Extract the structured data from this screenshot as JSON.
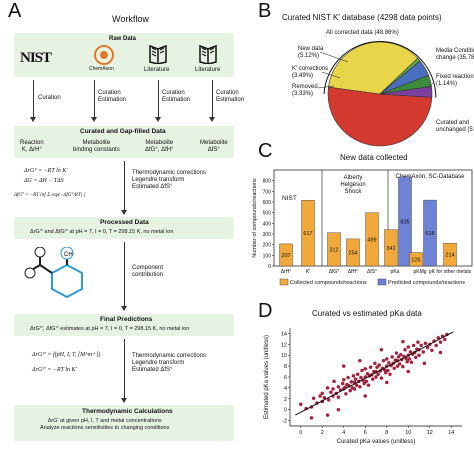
{
  "panelA": {
    "letter": "A",
    "title": "Workflow",
    "raw_data": "Raw Data",
    "sources": [
      "NIST",
      "ChemAxon",
      "Literature",
      "Literature"
    ],
    "steps": [
      "Curation",
      "Curation\nEstimation",
      "Curation\nEstimation",
      "Curation\nEstimation"
    ],
    "curated_title": "Curated and Gap-filled Data",
    "curated_cols": [
      "Reaction\nK, ΔrH°",
      "Metabolite\nbinding constants",
      "Metabolite\nΔfG°, ΔfH°",
      "Metabolite\nΔfS°"
    ],
    "eq1": [
      "ΔrG° = −RT ln K′",
      "ΔG = ΔH − TΔS",
      "ΔfG° = −RT ln[ Σ exp(−ΔfG°/RT) ]"
    ],
    "thermo_note": "Thermodynamic corrections\nLegendre transform\nEstimated ΔfS°",
    "processed_title": "Processed Data",
    "processed_text": "ΔrG°′ and ΔfG°′ at pH = 7, I = 0, T = 298.15 K, no metal ion",
    "component": "Component\ncontribution",
    "final_title": "Final Predictions",
    "final_text": "ΔrG°′, ΔfG°′ estimates at pH = 7, I = 0, T = 298.15 K, no metal ion",
    "eq2": [
      "ΔrG°′ = f(pH, I, T, [M^m+])",
      "ΔrG°′ = −RT ln K′"
    ],
    "thermo_note2": "Thermodynamic corrections\nLegendre transform\nEstimated ΔfS°",
    "calc_title": "Thermodynamic Calculations",
    "calc_text": "ΔrG′ at given pH, I, T and metal concentrations\nAnalyze reactions sensitivities to changing conditions"
  },
  "panelB": {
    "letter": "B",
    "title": "Curated NIST K′ database (4298 data points)",
    "labels": {
      "all_corrected": "All corrected data (48.86%)",
      "new_data": "New data\n(5.12%)",
      "k_corrections": "K′ corrections\n(3.49%)",
      "removed": "Removed\n(3.33%)",
      "media": "Media Condition\nchange (35.78%)",
      "fixed": "Fixed reaction\n(1.14%)",
      "curated": "Curated and\nunchanged (51.14%)"
    }
  },
  "panelC": {
    "letter": "C",
    "title": "New data collected",
    "group_labels": [
      "NIST",
      "Alberty\nHelgeson\nShock",
      "ChemAxon, SC-Database"
    ],
    "legend": [
      "Collected compounds/reactions",
      "Predicted compounds/reactions"
    ],
    "ylabel": "Number of compounds/reactions"
  },
  "panelD": {
    "letter": "D",
    "title": "Curated vs estimated pKa data",
    "xlabel": "Curated pKa values (unitless)",
    "ylabel": "Estimated pKa values (unitless)"
  },
  "chart_data": [
    {
      "type": "pie",
      "title": "Curated NIST K′ database (4298 data points)",
      "slices": [
        {
          "label": "Curated and unchanged",
          "value": 51.14,
          "color": "#d23a2f"
        },
        {
          "label": "Media Condition change",
          "value": 35.78,
          "color": "#e8d54a"
        },
        {
          "label": "Fixed reaction",
          "value": 1.14,
          "color": "#5ba84a"
        },
        {
          "label": "New data",
          "value": 5.12,
          "color": "#4b6fbf"
        },
        {
          "label": "K′ corrections",
          "value": 3.49,
          "color": "#3c8a3c"
        },
        {
          "label": "Removed",
          "value": 3.33,
          "color": "#7d3fa0"
        }
      ],
      "annotation": "All corrected data (48.86%)"
    },
    {
      "type": "bar",
      "title": "New data collected",
      "ylabel": "Number of compounds/reactions",
      "ylim": [
        0,
        900
      ],
      "yticks": [
        0,
        100,
        200,
        300,
        400,
        500,
        600,
        700,
        800
      ],
      "categories": [
        "ΔrH°",
        "K′",
        "ΔfG°",
        "ΔfH°",
        "ΔfS°",
        "pKa",
        "pKMg",
        "pK for other metals"
      ],
      "series": [
        {
          "name": "Collected compounds/reactions",
          "color": "#f2a93b",
          "values": [
            207,
            617,
            312,
            254,
            499,
            341,
            126,
            214
          ]
        },
        {
          "name": "Predicted compounds/reactions",
          "color": "#6f83d6",
          "values": [
            null,
            null,
            null,
            null,
            null,
            835,
            618,
            null
          ]
        }
      ]
    },
    {
      "type": "scatter",
      "title": "Curated vs estimated pKa data",
      "xlabel": "Curated pKa values (unitless)",
      "ylabel": "Estimated pKa values (unitless)",
      "xlim": [
        -1,
        15
      ],
      "ylim": [
        -3,
        15
      ],
      "xticks": [
        0,
        2,
        4,
        6,
        8,
        10,
        12,
        14
      ],
      "yticks": [
        -2,
        0,
        2,
        4,
        6,
        8,
        10,
        12,
        14
      ],
      "points": [
        [
          0,
          1
        ],
        [
          0.5,
          0.2
        ],
        [
          1,
          0.5
        ],
        [
          1.2,
          2.1
        ],
        [
          1.5,
          1.2
        ],
        [
          1.8,
          2.5
        ],
        [
          2,
          1.5
        ],
        [
          2,
          3
        ],
        [
          2.2,
          2.2
        ],
        [
          2.5,
          4
        ],
        [
          2.6,
          1.8
        ],
        [
          2.8,
          3.2
        ],
        [
          3,
          2.5
        ],
        [
          3,
          3.8
        ],
        [
          3.1,
          5.2
        ],
        [
          3.3,
          3
        ],
        [
          3.5,
          4.2
        ],
        [
          3.5,
          2.3
        ],
        [
          3.7,
          3.6
        ],
        [
          3.9,
          4.8
        ],
        [
          4,
          3.8
        ],
        [
          4,
          5.5
        ],
        [
          4.1,
          4.1
        ],
        [
          4.2,
          2.9
        ],
        [
          4.3,
          4.6
        ],
        [
          4.4,
          5.9
        ],
        [
          4.5,
          4.4
        ],
        [
          4.6,
          3.5
        ],
        [
          4.7,
          5.1
        ],
        [
          4.8,
          4.0
        ],
        [
          4.9,
          6.2
        ],
        [
          5,
          5
        ],
        [
          5,
          3.8
        ],
        [
          5.1,
          5.6
        ],
        [
          5.2,
          4.5
        ],
        [
          5.3,
          6.5
        ],
        [
          5.4,
          5.2
        ],
        [
          5.5,
          4.2
        ],
        [
          5.6,
          5.9
        ],
        [
          5.7,
          7.2
        ],
        [
          5.8,
          5.4
        ],
        [
          5.9,
          4.8
        ],
        [
          6,
          6
        ],
        [
          6,
          7.5
        ],
        [
          6.1,
          5.2
        ],
        [
          6.2,
          6.6
        ],
        [
          6.3,
          4.5
        ],
        [
          6.4,
          6.2
        ],
        [
          6.5,
          7.8
        ],
        [
          6.6,
          6.4
        ],
        [
          6.7,
          5.6
        ],
        [
          6.8,
          7
        ],
        [
          6.9,
          8.5
        ],
        [
          7,
          7
        ],
        [
          7,
          6
        ],
        [
          7.1,
          7.8
        ],
        [
          7.2,
          6.5
        ],
        [
          7.3,
          8.2
        ],
        [
          7.4,
          7.1
        ],
        [
          7.5,
          5.8
        ],
        [
          7.6,
          7.6
        ],
        [
          7.7,
          9
        ],
        [
          7.8,
          7.3
        ],
        [
          7.9,
          6.8
        ],
        [
          8,
          8
        ],
        [
          8,
          9.3
        ],
        [
          8.1,
          7.2
        ],
        [
          8.2,
          8.6
        ],
        [
          8.3,
          6.5
        ],
        [
          8.4,
          8.1
        ],
        [
          8.5,
          9.7
        ],
        [
          8.6,
          8.5
        ],
        [
          8.7,
          7.6
        ],
        [
          8.8,
          9.1
        ],
        [
          8.9,
          10.4
        ],
        [
          9,
          9
        ],
        [
          9,
          8
        ],
        [
          9.1,
          9.7
        ],
        [
          9.2,
          8.4
        ],
        [
          9.3,
          10.1
        ],
        [
          9.4,
          9.2
        ],
        [
          9.5,
          7.9
        ],
        [
          9.6,
          9.8
        ],
        [
          9.7,
          11
        ],
        [
          9.8,
          9.4
        ],
        [
          9.9,
          8.8
        ],
        [
          10,
          10
        ],
        [
          10,
          11.5
        ],
        [
          10.1,
          9.3
        ],
        [
          10.2,
          10.6
        ],
        [
          10.3,
          8.7
        ],
        [
          10.4,
          10.2
        ],
        [
          10.5,
          11.8
        ],
        [
          10.6,
          10.5
        ],
        [
          10.7,
          9.6
        ],
        [
          10.8,
          11.1
        ],
        [
          10.9,
          12.4
        ],
        [
          11,
          11
        ],
        [
          11,
          10
        ],
        [
          11.2,
          11.8
        ],
        [
          11.4,
          10.6
        ],
        [
          11.6,
          12.2
        ],
        [
          11.8,
          11.4
        ],
        [
          12,
          12
        ],
        [
          12.2,
          10.9
        ],
        [
          12.4,
          12.6
        ],
        [
          12.6,
          11.8
        ],
        [
          12.8,
          13.2
        ],
        [
          13,
          12.4
        ],
        [
          13.2,
          13.5
        ],
        [
          13.4,
          12.9
        ],
        [
          13.6,
          13.8
        ],
        [
          2.5,
          -1
        ],
        [
          3.5,
          0
        ],
        [
          6,
          2.5
        ],
        [
          8,
          5
        ],
        [
          10,
          7
        ],
        [
          4,
          8
        ],
        [
          5.5,
          9
        ],
        [
          7.5,
          11
        ],
        [
          9.5,
          12.5
        ],
        [
          11.5,
          8.5
        ],
        [
          1,
          -1.5
        ],
        [
          13,
          10.5
        ]
      ],
      "trend": [
        [
          -0.5,
          -1
        ],
        [
          14.2,
          14.3
        ]
      ]
    }
  ]
}
